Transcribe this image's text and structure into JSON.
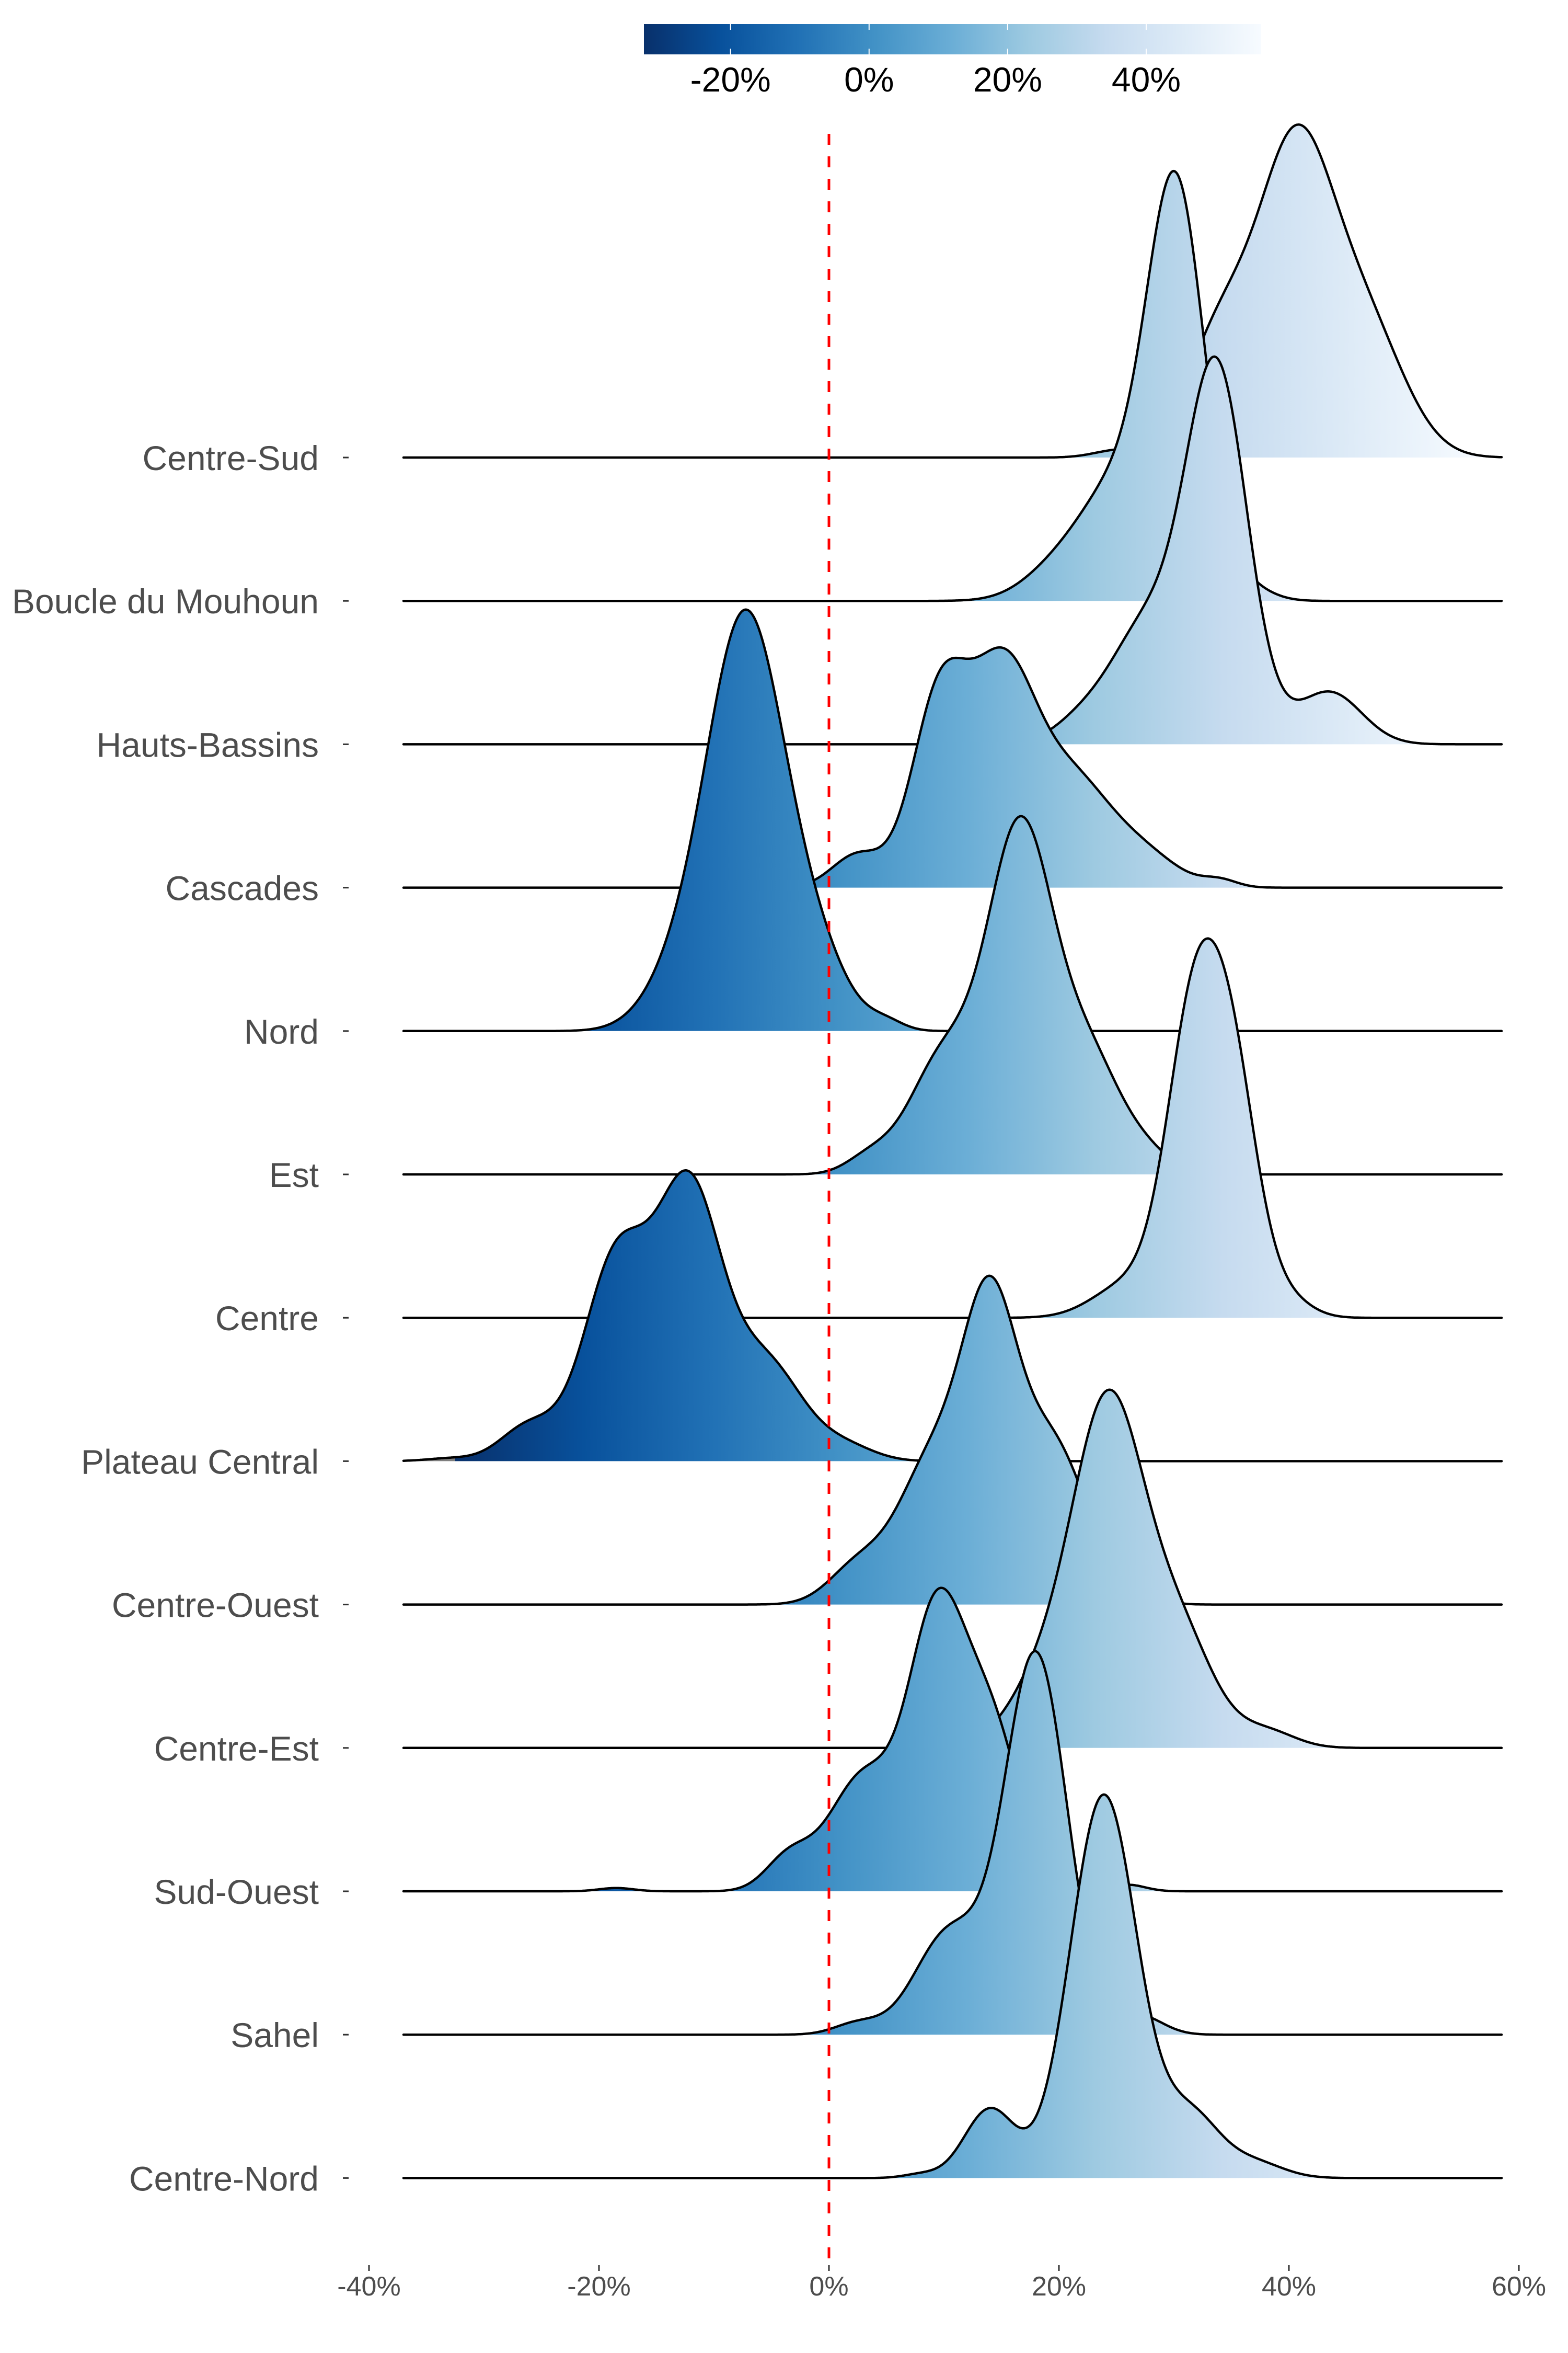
{
  "chart_data": {
    "type": "ridgeline",
    "title": "",
    "xlabel": "",
    "ylabel": "",
    "xlim": [
      -40,
      60
    ],
    "x_ticks": [
      "-40%",
      "-20%",
      "0%",
      "20%",
      "40%",
      "60%"
    ],
    "x_tick_values": [
      -40,
      -20,
      0,
      20,
      40,
      60
    ],
    "reference_line": {
      "value": 0,
      "style": "dashed",
      "color": "#ff0000"
    },
    "colorbar": {
      "position": "top",
      "range": [
        -32.5,
        56.6
      ],
      "ticks": [
        "-20%",
        "0%",
        "20%",
        "40%"
      ],
      "tick_values": [
        -20,
        0,
        20,
        40
      ],
      "palette": [
        "#08306b",
        "#08519c",
        "#2171b5",
        "#4292c6",
        "#6baed6",
        "#9ecae1",
        "#c6dbef",
        "#deebf7",
        "#f7fbff"
      ]
    },
    "data_extent": [
      -37,
      58.5
    ],
    "out_of_range_color": "#7f7f7f",
    "line_color": "#000000",
    "series": [
      {
        "name": "Centre-Sud",
        "peak": 40.5,
        "relative_height": 0.79,
        "components": [
          [
            34,
            3,
            0.35
          ],
          [
            40.5,
            3.2,
            0.85
          ],
          [
            46.5,
            3.5,
            0.38
          ],
          [
            25,
            2,
            0.02
          ]
        ]
      },
      {
        "name": "Boucle du Mouhoun",
        "peak": 30,
        "relative_height": 1.02,
        "components": [
          [
            30.2,
            2.5,
            1.0
          ],
          [
            25,
            3,
            0.25
          ],
          [
            20,
            3,
            0.08
          ],
          [
            36.5,
            2,
            0.03
          ]
        ]
      },
      {
        "name": "Hauts-Bassins",
        "peak": 33.5,
        "relative_height": 0.92,
        "components": [
          [
            33.7,
            2.7,
            1.0
          ],
          [
            27.5,
            3,
            0.3
          ],
          [
            22,
            2.5,
            0.06
          ],
          [
            43.5,
            2.8,
            0.14
          ]
        ]
      },
      {
        "name": "Cascades",
        "peak": 14.3,
        "relative_height": 0.57,
        "components": [
          [
            9.6,
            2.4,
            0.78
          ],
          [
            15,
            2.8,
            0.85
          ],
          [
            21,
            3.5,
            0.45
          ],
          [
            2.5,
            2.2,
            0.14
          ],
          [
            27.5,
            3,
            0.12
          ],
          [
            34,
            1.5,
            0.03
          ]
        ]
      },
      {
        "name": "Nord",
        "peak": -7.3,
        "relative_height": 1.0,
        "components": [
          [
            -7.3,
            3.3,
            1.0
          ],
          [
            -1.5,
            3,
            0.18
          ],
          [
            -13,
            3,
            0.12
          ],
          [
            5,
            1.5,
            0.02
          ]
        ]
      },
      {
        "name": "Est",
        "peak": 16.2,
        "relative_height": 0.85,
        "components": [
          [
            16.6,
            2.8,
            1.0
          ],
          [
            10,
            3,
            0.35
          ],
          [
            22.5,
            3,
            0.35
          ],
          [
            3.5,
            2,
            0.05
          ],
          [
            28,
            2,
            0.04
          ]
        ]
      },
      {
        "name": "Centre",
        "peak": 32,
        "relative_height": 0.9,
        "components": [
          [
            31.8,
            2.4,
            0.9
          ],
          [
            35.3,
            2.2,
            0.6
          ],
          [
            26,
            3,
            0.1
          ],
          [
            40,
            2,
            0.05
          ]
        ]
      },
      {
        "name": "Plateau Central",
        "peak": -12.4,
        "relative_height": 0.69,
        "components": [
          [
            -18.5,
            2.8,
            0.72
          ],
          [
            -12.2,
            2.8,
            0.95
          ],
          [
            -5.5,
            3.2,
            0.35
          ],
          [
            -26,
            2.5,
            0.13
          ],
          [
            1.5,
            2.5,
            0.05
          ],
          [
            -33,
            2,
            0.01
          ]
        ]
      },
      {
        "name": "Centre-Ouest",
        "peak": 13.8,
        "relative_height": 0.78,
        "components": [
          [
            14,
            2.4,
            0.85
          ],
          [
            9,
            3,
            0.45
          ],
          [
            19.5,
            3,
            0.5
          ],
          [
            2.5,
            2.5,
            0.12
          ],
          [
            26,
            2,
            0.05
          ]
        ]
      },
      {
        "name": "Centre-Est",
        "peak": 24.1,
        "relative_height": 0.85,
        "components": [
          [
            24.3,
            3.1,
            1.0
          ],
          [
            18.5,
            3,
            0.18
          ],
          [
            30.5,
            3,
            0.32
          ],
          [
            38,
            2.5,
            0.05
          ]
        ]
      },
      {
        "name": "Sud-Ouest",
        "peak": 9,
        "relative_height": 0.72,
        "components": [
          [
            9.3,
            2.4,
            0.78
          ],
          [
            14,
            2.6,
            0.5
          ],
          [
            3,
            3,
            0.35
          ],
          [
            -3.5,
            2,
            0.1
          ],
          [
            -18.5,
            1.5,
            0.01
          ],
          [
            26,
            1.5,
            0.02
          ]
        ]
      },
      {
        "name": "Sahel",
        "peak": 17.8,
        "relative_height": 0.91,
        "components": [
          [
            18,
            2.7,
            1.0
          ],
          [
            10.5,
            3,
            0.27
          ],
          [
            27,
            2,
            0.05
          ],
          [
            2.5,
            2,
            0.03
          ]
        ]
      },
      {
        "name": "Centre-Nord",
        "peak": 23.7,
        "relative_height": 0.91,
        "components": [
          [
            23.9,
            2.9,
            1.0
          ],
          [
            14,
            2.2,
            0.18
          ],
          [
            31.5,
            2.5,
            0.16
          ],
          [
            37,
            2.5,
            0.04
          ],
          [
            8,
            1.5,
            0.01
          ]
        ]
      }
    ]
  }
}
